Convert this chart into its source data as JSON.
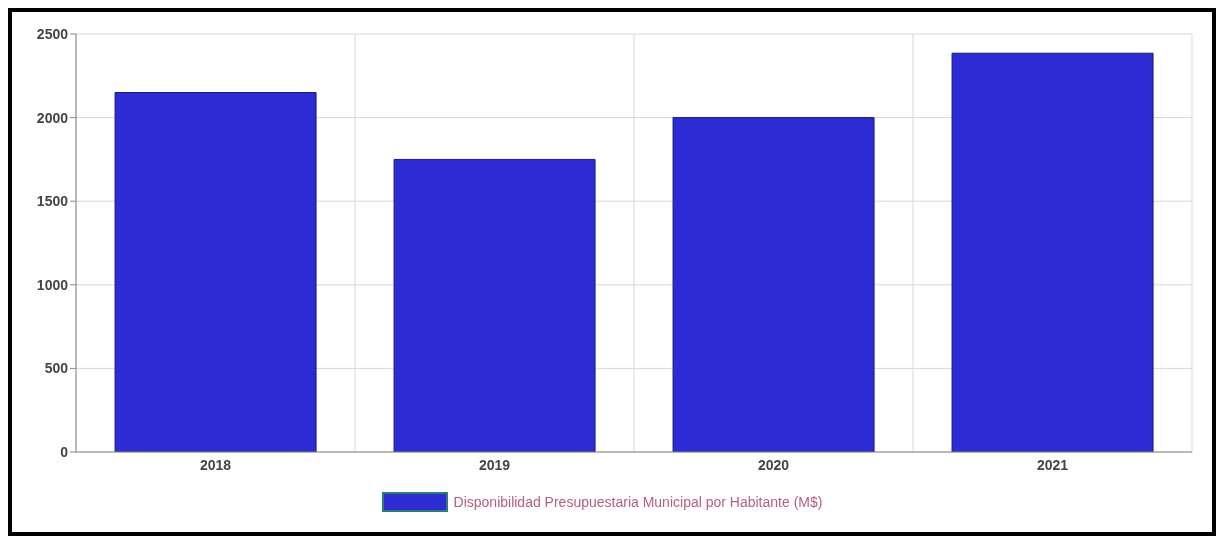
{
  "chart_data": {
    "type": "bar",
    "categories": [
      "2018",
      "2019",
      "2020",
      "2021"
    ],
    "series": [
      {
        "name": "Disponibilidad Presupuestaria Municipal por Habitante (M$)",
        "color": "#2c2bd4",
        "values": [
          2150,
          1750,
          2000,
          2385
        ]
      }
    ],
    "ylim": [
      0,
      2500
    ],
    "yticks": [
      0,
      500,
      1000,
      1500,
      2000,
      2500
    ],
    "grid": true,
    "legend": "bottom"
  }
}
